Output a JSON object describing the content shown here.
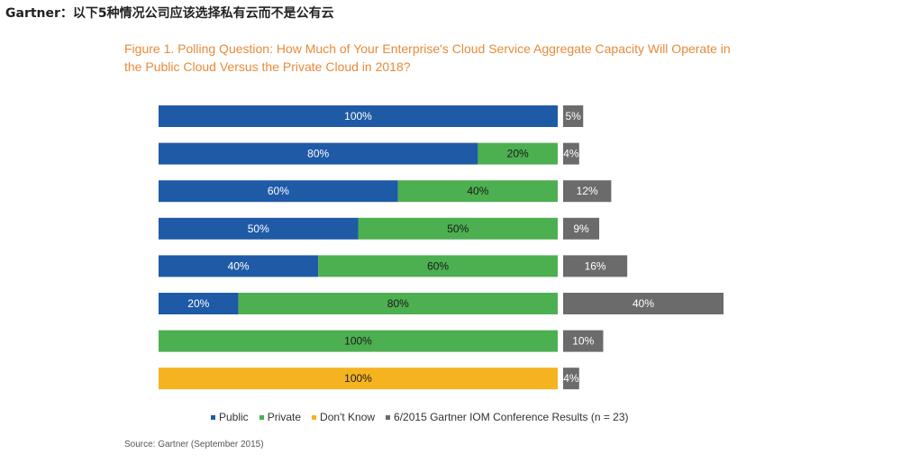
{
  "header": {
    "title": "Gartner：以下5种情况公司应该选择私有云而不是公有云"
  },
  "figure": {
    "title_line1": "Figure 1. Polling Question: How Much of Your Enterprise's Cloud Service Aggregate Capacity Will Operate in",
    "title_line2": "the Public Cloud Versus the Private Cloud in 2018?",
    "source": "Source: Gartner (September 2015)"
  },
  "colors": {
    "public": "#1f5aa6",
    "private": "#4caf50",
    "dont_know": "#f5b320",
    "results": "#6b6b6b"
  },
  "chart_data": {
    "type": "bar",
    "orientation": "horizontal",
    "stacked": true,
    "legend_position": "bottom",
    "series_names": [
      "Public",
      "Private",
      "Don't Know"
    ],
    "rows": [
      {
        "public": 100,
        "private": 0,
        "dont_know": 0,
        "result": 5
      },
      {
        "public": 80,
        "private": 20,
        "dont_know": 0,
        "result": 4
      },
      {
        "public": 60,
        "private": 40,
        "dont_know": 0,
        "result": 12
      },
      {
        "public": 50,
        "private": 50,
        "dont_know": 0,
        "result": 9
      },
      {
        "public": 40,
        "private": 60,
        "dont_know": 0,
        "result": 16
      },
      {
        "public": 20,
        "private": 80,
        "dont_know": 0,
        "result": 40
      },
      {
        "public": 0,
        "private": 100,
        "dont_know": 0,
        "result": 10
      },
      {
        "public": 0,
        "private": 0,
        "dont_know": 100,
        "result": 4
      }
    ],
    "results_series_name": "6/2015 Gartner IOM Conference Results (n = 23)",
    "legend": [
      {
        "label": "Public",
        "color_key": "public"
      },
      {
        "label": "Private",
        "color_key": "private"
      },
      {
        "label": "Don't Know",
        "color_key": "dont_know"
      },
      {
        "label": "6/2015 Gartner IOM Conference Results (n = 23)",
        "color_key": "results"
      }
    ]
  }
}
